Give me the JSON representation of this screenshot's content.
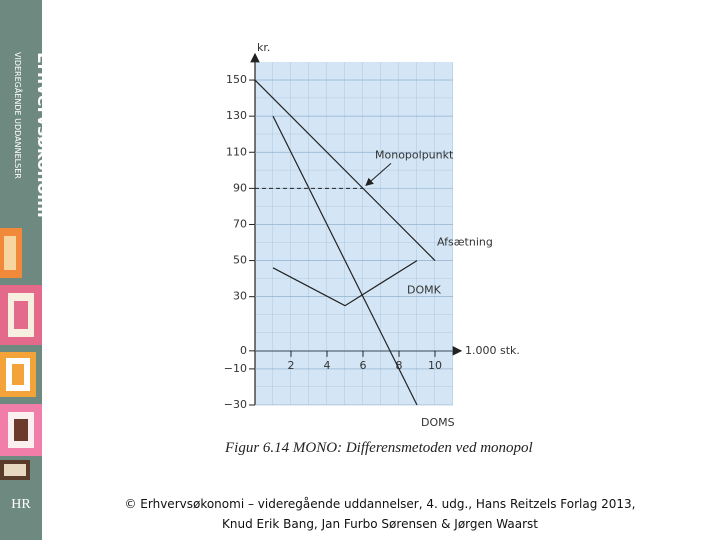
{
  "sidebar": {
    "title": "Erhvervsøkonomi",
    "subtitle": "VIDEREGÅENDE UDDANNELSER",
    "logo": "HR"
  },
  "chart_data": {
    "type": "line",
    "caption": "Figur 6.14 MONO: Differensmetoden ved monopol",
    "x_label": "1.000 stk.",
    "y_label": "kr.",
    "xlim": [
      0,
      11
    ],
    "ylim": [
      -30,
      160
    ],
    "xticks": [
      2,
      4,
      6,
      8,
      10
    ],
    "yticks": [
      150,
      130,
      110,
      90,
      70,
      50,
      30,
      0,
      {
        "value": -10,
        "label": "−10"
      },
      {
        "value": -30,
        "label": "−30"
      }
    ],
    "grid": true,
    "series": [
      {
        "name": "Afsætning",
        "color": "#222222",
        "x": [
          0,
          10
        ],
        "values": [
          150,
          50
        ]
      },
      {
        "name": "DOMS",
        "color": "#222222",
        "x": [
          1,
          9
        ],
        "values": [
          130,
          -30
        ]
      },
      {
        "name": "DOMK",
        "color": "#222222",
        "x": [
          1,
          5,
          9
        ],
        "values": [
          46,
          25,
          50
        ]
      }
    ],
    "annotation": {
      "text": "Monopolpunkt",
      "x": 6,
      "y": 90
    }
  },
  "footer": {
    "line1": "© Erhvervsøkonomi – videregående uddannelser, 4. udg., Hans Reitzels Forlag 2013,",
    "line2": "Knud Erik Bang, Jan Furbo Sørensen & Jørgen Waarst"
  }
}
